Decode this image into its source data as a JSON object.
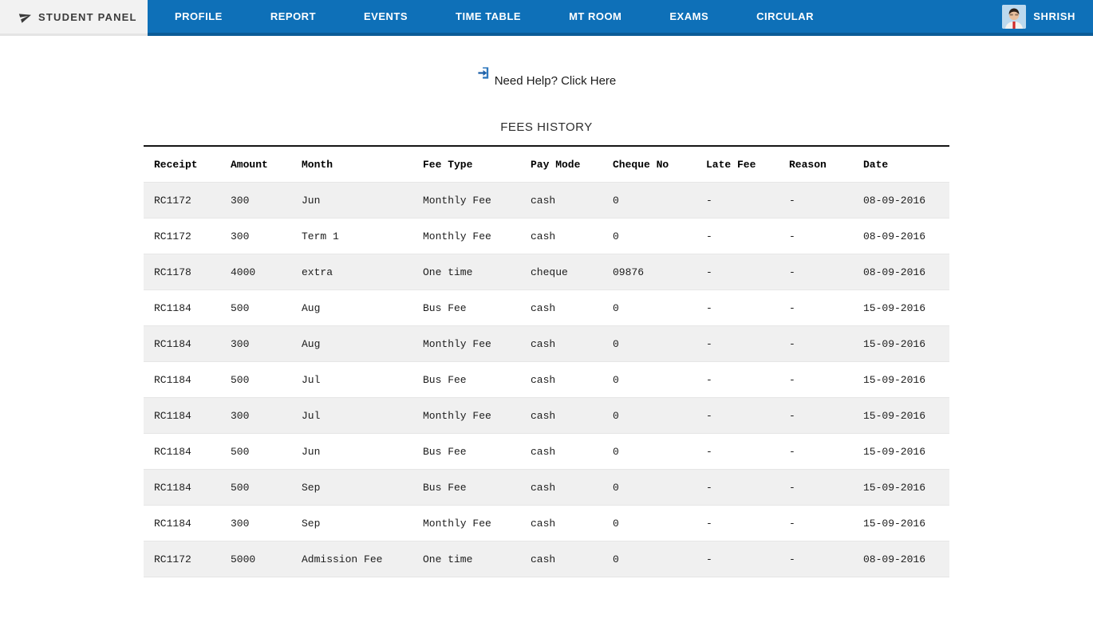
{
  "navbar": {
    "brand": "STUDENT PANEL",
    "items": [
      {
        "label": "PROFILE"
      },
      {
        "label": "REPORT"
      },
      {
        "label": "EVENTS"
      },
      {
        "label": "TIME TABLE"
      },
      {
        "label": "MT ROOM"
      },
      {
        "label": "EXAMS"
      },
      {
        "label": "CIRCULAR"
      }
    ],
    "user": {
      "name": "SHRISH",
      "avatar_icon": "student-photo"
    }
  },
  "help": {
    "label": "Need Help? Click Here",
    "icon": "sign-in-door-icon"
  },
  "fees": {
    "title": "FEES HISTORY",
    "columns": [
      "Receipt",
      "Amount",
      "Month",
      "Fee Type",
      "Pay Mode",
      "Cheque No",
      "Late Fee",
      "Reason",
      "Date"
    ],
    "rows": [
      [
        "RC1172",
        "300",
        "Jun",
        "Monthly Fee",
        "cash",
        "0",
        "-",
        "-",
        "08-09-2016"
      ],
      [
        "RC1172",
        "300",
        "Term 1",
        "Monthly Fee",
        "cash",
        "0",
        "-",
        "-",
        "08-09-2016"
      ],
      [
        "RC1178",
        "4000",
        "extra",
        "One time",
        "cheque",
        "09876",
        "-",
        "-",
        "08-09-2016"
      ],
      [
        "RC1184",
        "500",
        "Aug",
        "Bus Fee",
        "cash",
        "0",
        "-",
        "-",
        "15-09-2016"
      ],
      [
        "RC1184",
        "300",
        "Aug",
        "Monthly Fee",
        "cash",
        "0",
        "-",
        "-",
        "15-09-2016"
      ],
      [
        "RC1184",
        "500",
        "Jul",
        "Bus Fee",
        "cash",
        "0",
        "-",
        "-",
        "15-09-2016"
      ],
      [
        "RC1184",
        "300",
        "Jul",
        "Monthly Fee",
        "cash",
        "0",
        "-",
        "-",
        "15-09-2016"
      ],
      [
        "RC1184",
        "500",
        "Jun",
        "Bus Fee",
        "cash",
        "0",
        "-",
        "-",
        "15-09-2016"
      ],
      [
        "RC1184",
        "500",
        "Sep",
        "Bus Fee",
        "cash",
        "0",
        "-",
        "-",
        "15-09-2016"
      ],
      [
        "RC1184",
        "300",
        "Sep",
        "Monthly Fee",
        "cash",
        "0",
        "-",
        "-",
        "15-09-2016"
      ],
      [
        "RC1172",
        "5000",
        "Admission Fee",
        "One time",
        "cash",
        "0",
        "-",
        "-",
        "08-09-2016"
      ]
    ]
  },
  "colors": {
    "navbar_blue": "#0e70b8",
    "navbar_blue_dark": "#0b5c97",
    "brand_background": "#f2f2f2",
    "row_stripe": "#f0f0f0",
    "help_icon_blue": "#2e77bd"
  }
}
